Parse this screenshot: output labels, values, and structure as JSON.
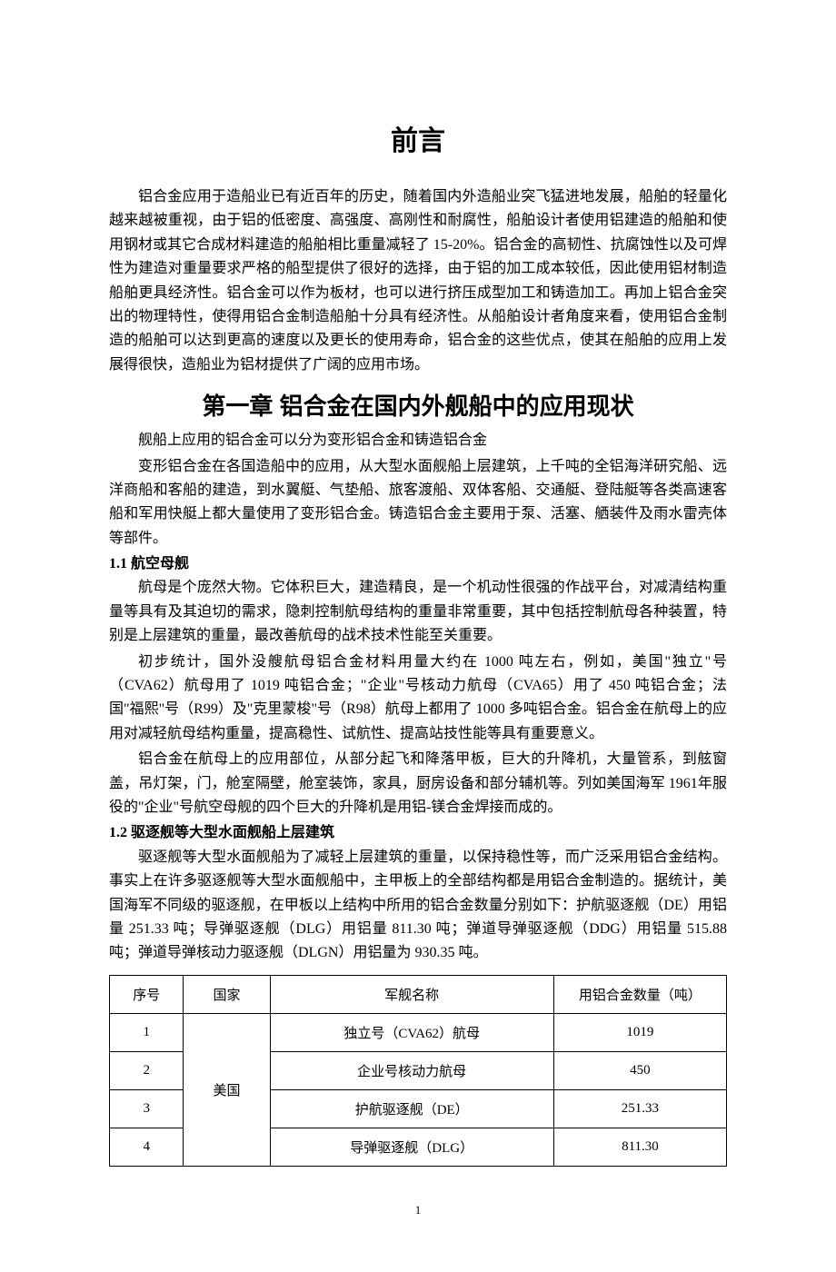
{
  "title": "前言",
  "intro_paragraph": "铝合金应用于造船业已有近百年的历史，随着国内外造船业突飞猛进地发展，船舶的轻量化越来越被重视，由于铝的低密度、高强度、高刚性和耐腐性，船舶设计者使用铝建造的船舶和使用钢材或其它合成材料建造的船舶相比重量减轻了 15-20%。铝合金的高韧性、抗腐蚀性以及可焊性为建造对重量要求严格的船型提供了很好的选择，由于铝的加工成本较低，因此使用铝材制造船舶更具经济性。铝合金可以作为板材，也可以进行挤压成型加工和铸造加工。再加上铝合金突出的物理特性，使得用铝合金制造船舶十分具有经济性。从船舶设计者角度来看，使用铝合金制造的船舶可以达到更高的速度以及更长的使用寿命，铝合金的这些优点，使其在船舶的应用上发展得很快，造船业为铝材提供了广阔的应用市场。",
  "chapter_title": "第一章 铝合金在国内外舰船中的应用现状",
  "chapter_intro_p1": "舰船上应用的铝合金可以分为变形铝合金和铸造铝合金",
  "chapter_intro_p2": "变形铝合金在各国造船中的应用，从大型水面舰船上层建筑，上千吨的全铝海洋研究船、远洋商船和客船的建造，到水翼艇、气垫船、旅客渡船、双体客船、交通艇、登陆艇等各类高速客船和军用快艇上都大量使用了变形铝合金。铸造铝合金主要用于泵、活塞、舾装件及雨水雷壳体等部件。",
  "section_1_1": {
    "title": "1.1 航空母舰",
    "p1": "航母是个庞然大物。它体积巨大，建造精良，是一个机动性很强的作战平台，对减清结构重量等具有及其迫切的需求，隐刺控制航母结构的重量非常重要，其中包括控制航母各种装置，特别是上层建筑的重量，最改善航母的战术技术性能至关重要。",
    "p2": "初步统计，国外没艘航母铝合金材料用量大约在 1000 吨左右，例如，美国\"独立\"号（CVA62）航母用了 1019 吨铝合金；\"企业\"号核动力航母（CVA65）用了 450 吨铝合金；法国\"福熙\"号（R99）及\"克里蒙梭\"号（R98）航母上都用了 1000 多吨铝合金。铝合金在航母上的应用对减轻航母结构重量，提高稳性、试航性、提高站技性能等具有重要意义。",
    "p3": "铝合金在航母上的应用部位，从部分起飞和降落甲板，巨大的升降机，大量管系，到舷窗盖，吊灯架，门，舱室隔壁，舱室装饰，家具，厨房设备和部分辅机等。列如美国海军 1961年服役的\"企业\"号航空母舰的四个巨大的升降机是用铝-镁合金焊接而成的。"
  },
  "section_1_2": {
    "title": "1.2 驱逐舰等大型水面舰船上层建筑",
    "p1": "驱逐舰等大型水面舰船为了减轻上层建筑的重量，以保持稳性等，而广泛采用铝合金结构。事实上在许多驱逐舰等大型水面舰船中，主甲板上的全部结构都是用铝合金制造的。据统计，美国海军不同级的驱逐舰，在甲板以上结构中所用的铝合金数量分别如下：护航驱逐舰（DE）用铝量 251.33 吨；导弹驱逐舰（DLG）用铝量 811.30 吨；弹道导弹驱逐舰（DDG）用铝量 515.88 吨；弹道导弹核动力驱逐舰（DLGN）用铝量为 930.35 吨。"
  },
  "table": {
    "columns": [
      "序号",
      "国家",
      "军舰名称",
      "用铝合金数量（吨）"
    ],
    "country": "美国",
    "rows": [
      {
        "seq": "1",
        "name": "独立号（CVA62）航母",
        "amount": "1019"
      },
      {
        "seq": "2",
        "name": "企业号核动力航母",
        "amount": "450"
      },
      {
        "seq": "3",
        "name": "护航驱逐舰（DE）",
        "amount": "251.33"
      },
      {
        "seq": "4",
        "name": "导弹驱逐舰（DLG）",
        "amount": "811.30"
      }
    ],
    "col_widths": [
      "12%",
      "14%",
      "46%",
      "28%"
    ]
  },
  "page_number": "1"
}
